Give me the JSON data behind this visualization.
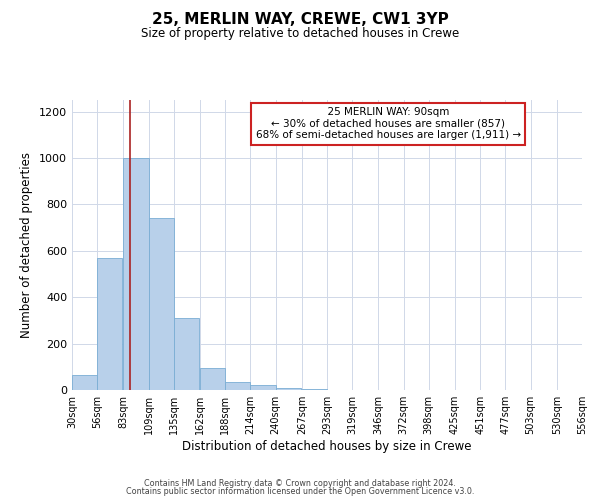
{
  "title": "25, MERLIN WAY, CREWE, CW1 3YP",
  "subtitle": "Size of property relative to detached houses in Crewe",
  "xlabel": "Distribution of detached houses by size in Crewe",
  "ylabel": "Number of detached properties",
  "bar_values": [
    65,
    570,
    1000,
    740,
    310,
    95,
    35,
    20,
    8,
    5,
    0,
    0,
    0,
    0,
    0,
    0,
    0,
    0,
    0
  ],
  "bin_edges": [
    30,
    56,
    83,
    109,
    135,
    162,
    188,
    214,
    240,
    267,
    293,
    319,
    346,
    372,
    398,
    425,
    451,
    477,
    503,
    530
  ],
  "tick_labels": [
    "30sqm",
    "56sqm",
    "83sqm",
    "109sqm",
    "135sqm",
    "162sqm",
    "188sqm",
    "214sqm",
    "240sqm",
    "267sqm",
    "293sqm",
    "319sqm",
    "346sqm",
    "372sqm",
    "398sqm",
    "425sqm",
    "451sqm",
    "477sqm",
    "503sqm",
    "530sqm",
    "556sqm"
  ],
  "bar_color": "#b8d0ea",
  "bar_edge_color": "#7aadd4",
  "vline_x": 90,
  "vline_color": "#aa2222",
  "ylim": [
    0,
    1250
  ],
  "yticks": [
    0,
    200,
    400,
    600,
    800,
    1000,
    1200
  ],
  "annotation_title": "25 MERLIN WAY: 90sqm",
  "annotation_line1": "← 30% of detached houses are smaller (857)",
  "annotation_line2": "68% of semi-detached houses are larger (1,911) →",
  "annotation_box_color": "#ffffff",
  "annotation_box_edge_color": "#cc2222",
  "footer1": "Contains HM Land Registry data © Crown copyright and database right 2024.",
  "footer2": "Contains public sector information licensed under the Open Government Licence v3.0.",
  "background_color": "#ffffff",
  "grid_color": "#d0d8e8"
}
